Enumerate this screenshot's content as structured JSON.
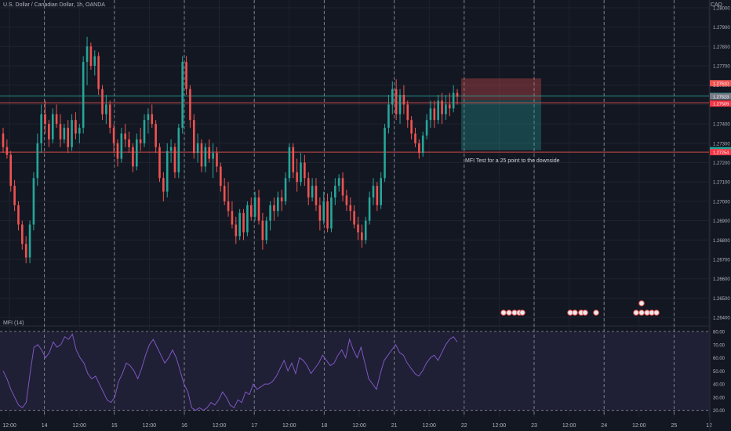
{
  "header": {
    "title": "U.S. Dollar / Canadian Dollar, 1h, OANDA",
    "currency": "CAD"
  },
  "indicator": {
    "label": "MFI (14)"
  },
  "annotation": {
    "text": "MFI Test for a 25 point to the downside"
  },
  "colors": {
    "up": "#26a69a",
    "down": "#ef5350",
    "bg": "#131722",
    "mfi": "#7e57c2",
    "resistance": "#ef5350"
  },
  "chart_data": {
    "type": "candlestick",
    "price_axis": {
      "ticks": [
        "1.28000",
        "1.27900",
        "1.27800",
        "1.27700",
        "1.27600",
        "1.27500",
        "1.27400",
        "1.27300",
        "1.27200",
        "1.27100",
        "1.27000",
        "1.26900",
        "1.26800",
        "1.26700",
        "1.26600",
        "1.26500",
        "1.26400"
      ],
      "ylim": [
        1.2636,
        1.2804
      ]
    },
    "time_axis": {
      "ticks": [
        "12:00",
        "14",
        "12:00",
        "15",
        "12:00",
        "16",
        "12:00",
        "17",
        "12:00",
        "18",
        "12:00",
        "21",
        "12:00",
        "22",
        "12:00",
        "23",
        "12:00",
        "24",
        "12:00",
        "25",
        "12"
      ]
    },
    "price_labels": [
      {
        "value": "1.27610",
        "color": "#ef5350"
      },
      {
        "value": "1.27544",
        "color": "#26a69a"
      },
      {
        "value": "45:29",
        "color": "#26a69a"
      },
      {
        "value": "1.27523",
        "color": "#787b86"
      },
      {
        "value": "1.27509",
        "color": "#f23645"
      },
      {
        "value": "1.27264",
        "color": "#26a69a"
      },
      {
        "value": "1.27254",
        "color": "#f23645"
      }
    ],
    "lines": [
      {
        "price": 1.27509,
        "color": "#ef5350"
      },
      {
        "price": 1.27254,
        "color": "#ef5350"
      },
      {
        "price": 1.27544,
        "color": "#26a69a"
      }
    ],
    "position": {
      "entry": 1.27523,
      "stop": 1.27635,
      "target": 1.27264
    },
    "candles": [
      [
        1.2735,
        1.2738,
        1.2725,
        1.2728
      ],
      [
        1.2728,
        1.2732,
        1.2722,
        1.2724
      ],
      [
        1.2724,
        1.2726,
        1.2705,
        1.2708
      ],
      [
        1.2708,
        1.2711,
        1.2695,
        1.2698
      ],
      [
        1.2698,
        1.27,
        1.2685,
        1.2688
      ],
      [
        1.2688,
        1.269,
        1.2675,
        1.2678
      ],
      [
        1.2678,
        1.2682,
        1.2668,
        1.2671
      ],
      [
        1.2671,
        1.269,
        1.2668,
        1.2688
      ],
      [
        1.2688,
        1.2715,
        1.2685,
        1.2712
      ],
      [
        1.2712,
        1.2735,
        1.2708,
        1.273
      ],
      [
        1.273,
        1.275,
        1.2725,
        1.2745
      ],
      [
        1.2745,
        1.2752,
        1.2735,
        1.274
      ],
      [
        1.274,
        1.2742,
        1.2728,
        1.2732
      ],
      [
        1.2732,
        1.2748,
        1.273,
        1.2745
      ],
      [
        1.2745,
        1.275,
        1.2738,
        1.274
      ],
      [
        1.274,
        1.2745,
        1.2728,
        1.2732
      ],
      [
        1.2732,
        1.274,
        1.273,
        1.2738
      ],
      [
        1.2738,
        1.2742,
        1.2725,
        1.2728
      ],
      [
        1.2728,
        1.2745,
        1.2726,
        1.2742
      ],
      [
        1.2742,
        1.2746,
        1.2732,
        1.2735
      ],
      [
        1.2735,
        1.274,
        1.273,
        1.2738
      ],
      [
        1.2738,
        1.2775,
        1.2735,
        1.2772
      ],
      [
        1.2772,
        1.2785,
        1.276,
        1.278
      ],
      [
        1.278,
        1.2782,
        1.2768,
        1.277
      ],
      [
        1.277,
        1.2778,
        1.2765,
        1.2775
      ],
      [
        1.2775,
        1.2777,
        1.2755,
        1.2758
      ],
      [
        1.2758,
        1.276,
        1.2742,
        1.2745
      ],
      [
        1.2745,
        1.2755,
        1.274,
        1.275
      ],
      [
        1.275,
        1.2752,
        1.2735,
        1.2738
      ],
      [
        1.2738,
        1.274,
        1.2725,
        1.273
      ],
      [
        1.273,
        1.2732,
        1.2718,
        1.2722
      ],
      [
        1.2722,
        1.2738,
        1.272,
        1.2735
      ],
      [
        1.2735,
        1.274,
        1.2728,
        1.2732
      ],
      [
        1.2732,
        1.2736,
        1.2725,
        1.2728
      ],
      [
        1.2728,
        1.273,
        1.2715,
        1.2718
      ],
      [
        1.2718,
        1.2735,
        1.2716,
        1.2732
      ],
      [
        1.2732,
        1.2738,
        1.2726,
        1.273
      ],
      [
        1.273,
        1.2745,
        1.2728,
        1.2742
      ],
      [
        1.2742,
        1.2748,
        1.2735,
        1.2745
      ],
      [
        1.2745,
        1.275,
        1.2738,
        1.274
      ],
      [
        1.274,
        1.2742,
        1.2725,
        1.2728
      ],
      [
        1.2728,
        1.273,
        1.271,
        1.2712
      ],
      [
        1.2712,
        1.2715,
        1.27,
        1.2705
      ],
      [
        1.2705,
        1.273,
        1.2702,
        1.2726
      ],
      [
        1.2726,
        1.2732,
        1.272,
        1.2728
      ],
      [
        1.2728,
        1.273,
        1.2712,
        1.2715
      ],
      [
        1.2715,
        1.274,
        1.2712,
        1.2738
      ],
      [
        1.2738,
        1.2775,
        1.2735,
        1.2772
      ],
      [
        1.2772,
        1.2775,
        1.2755,
        1.2758
      ],
      [
        1.2758,
        1.276,
        1.2738,
        1.2742
      ],
      [
        1.2742,
        1.2745,
        1.2722,
        1.2725
      ],
      [
        1.2725,
        1.2735,
        1.272,
        1.273
      ],
      [
        1.273,
        1.2732,
        1.2715,
        1.2718
      ],
      [
        1.2718,
        1.273,
        1.2715,
        1.2728
      ],
      [
        1.2728,
        1.2732,
        1.272,
        1.2722
      ],
      [
        1.2722,
        1.273,
        1.2712,
        1.2725
      ],
      [
        1.2725,
        1.2728,
        1.2715,
        1.2718
      ],
      [
        1.2718,
        1.272,
        1.2705,
        1.2708
      ],
      [
        1.2708,
        1.2712,
        1.2698,
        1.27
      ],
      [
        1.27,
        1.271,
        1.2692,
        1.2695
      ],
      [
        1.2695,
        1.27,
        1.2686,
        1.2688
      ],
      [
        1.2688,
        1.2692,
        1.2678,
        1.2682
      ],
      [
        1.2682,
        1.2696,
        1.268,
        1.2694
      ],
      [
        1.2694,
        1.2696,
        1.268,
        1.2684
      ],
      [
        1.2684,
        1.27,
        1.2682,
        1.2698
      ],
      [
        1.2698,
        1.2702,
        1.269,
        1.2692
      ],
      [
        1.2692,
        1.2705,
        1.269,
        1.2702
      ],
      [
        1.2702,
        1.2706,
        1.2688,
        1.269
      ],
      [
        1.269,
        1.2694,
        1.2675,
        1.268
      ],
      [
        1.268,
        1.2692,
        1.2678,
        1.269
      ],
      [
        1.269,
        1.27,
        1.2685,
        1.2698
      ],
      [
        1.2698,
        1.2702,
        1.269,
        1.2695
      ],
      [
        1.2695,
        1.2705,
        1.2692,
        1.2702
      ],
      [
        1.2702,
        1.2706,
        1.2695,
        1.27
      ],
      [
        1.27,
        1.2715,
        1.2698,
        1.2712
      ],
      [
        1.2712,
        1.273,
        1.271,
        1.2728
      ],
      [
        1.2728,
        1.273,
        1.2712,
        1.2715
      ],
      [
        1.2715,
        1.2722,
        1.2705,
        1.271
      ],
      [
        1.271,
        1.2725,
        1.2708,
        1.272
      ],
      [
        1.272,
        1.2724,
        1.2708,
        1.2712
      ],
      [
        1.2712,
        1.2715,
        1.2698,
        1.2702
      ],
      [
        1.2702,
        1.2712,
        1.27,
        1.2708
      ],
      [
        1.2708,
        1.2712,
        1.2695,
        1.2698
      ],
      [
        1.2698,
        1.2702,
        1.2685,
        1.269
      ],
      [
        1.269,
        1.2705,
        1.2688,
        1.27
      ],
      [
        1.27,
        1.2704,
        1.2684,
        1.2686
      ],
      [
        1.2686,
        1.2705,
        1.2684,
        1.2702
      ],
      [
        1.2702,
        1.2712,
        1.2698,
        1.2708
      ],
      [
        1.2708,
        1.2714,
        1.2705,
        1.2712
      ],
      [
        1.2712,
        1.2715,
        1.27,
        1.2703
      ],
      [
        1.2703,
        1.2706,
        1.2695,
        1.2698
      ],
      [
        1.2698,
        1.2702,
        1.269,
        1.2695
      ],
      [
        1.2695,
        1.2698,
        1.2686,
        1.2688
      ],
      [
        1.2688,
        1.2692,
        1.268,
        1.2684
      ],
      [
        1.2684,
        1.2688,
        1.2676,
        1.268
      ],
      [
        1.268,
        1.2692,
        1.2678,
        1.269
      ],
      [
        1.269,
        1.2705,
        1.2688,
        1.2702
      ],
      [
        1.2702,
        1.2712,
        1.2698,
        1.2708
      ],
      [
        1.2708,
        1.271,
        1.2695,
        1.2698
      ],
      [
        1.2698,
        1.2715,
        1.2696,
        1.2712
      ],
      [
        1.2712,
        1.274,
        1.271,
        1.2738
      ],
      [
        1.2738,
        1.2755,
        1.2735,
        1.275
      ],
      [
        1.275,
        1.2762,
        1.2745,
        1.2758
      ],
      [
        1.2758,
        1.2763,
        1.2742,
        1.2745
      ],
      [
        1.2745,
        1.2758,
        1.274,
        1.2755
      ],
      [
        1.2755,
        1.276,
        1.2745,
        1.275
      ],
      [
        1.275,
        1.2752,
        1.2738,
        1.2742
      ],
      [
        1.2742,
        1.2744,
        1.2732,
        1.2735
      ],
      [
        1.2735,
        1.2738,
        1.2728,
        1.273
      ],
      [
        1.273,
        1.2732,
        1.2722,
        1.2725
      ],
      [
        1.2725,
        1.2736,
        1.2723,
        1.2734
      ],
      [
        1.2734,
        1.2745,
        1.2732,
        1.2742
      ],
      [
        1.2742,
        1.2752,
        1.2738,
        1.2748
      ],
      [
        1.2748,
        1.2752,
        1.2738,
        1.2742
      ],
      [
        1.2742,
        1.2755,
        1.274,
        1.2752
      ],
      [
        1.2752,
        1.2756,
        1.274,
        1.2745
      ],
      [
        1.2745,
        1.2755,
        1.2742,
        1.275
      ],
      [
        1.275,
        1.2756,
        1.2744,
        1.2748
      ],
      [
        1.2748,
        1.276,
        1.2746,
        1.2756
      ],
      [
        1.2756,
        1.2758,
        1.275,
        1.2754
      ]
    ],
    "mfi": {
      "ticks": [
        "80.00",
        "70.00",
        "60.00",
        "50.00",
        "40.00",
        "30.00",
        "20.00"
      ],
      "ylim": [
        15,
        83
      ],
      "levels": [
        80,
        20
      ],
      "values": [
        50,
        44,
        36,
        30,
        24,
        22,
        26,
        48,
        68,
        70,
        66,
        60,
        64,
        72,
        68,
        70,
        76,
        74,
        78,
        66,
        60,
        56,
        48,
        44,
        46,
        40,
        34,
        28,
        26,
        30,
        42,
        48,
        56,
        54,
        50,
        44,
        52,
        62,
        70,
        74,
        68,
        62,
        56,
        60,
        66,
        60,
        50,
        40,
        34,
        22,
        20,
        22,
        20,
        22,
        26,
        24,
        28,
        34,
        30,
        24,
        22,
        28,
        26,
        34,
        32,
        40,
        36,
        38,
        40,
        40,
        42,
        46,
        52,
        58,
        50,
        56,
        48,
        60,
        58,
        54,
        48,
        52,
        56,
        62,
        58,
        54,
        56,
        62,
        66,
        60,
        74,
        66,
        60,
        68,
        56,
        44,
        40,
        36,
        48,
        58,
        62,
        66,
        70,
        64,
        62,
        56,
        52,
        48,
        46,
        50,
        56,
        60,
        62,
        58,
        64,
        70,
        74,
        76,
        72
      ]
    }
  }
}
